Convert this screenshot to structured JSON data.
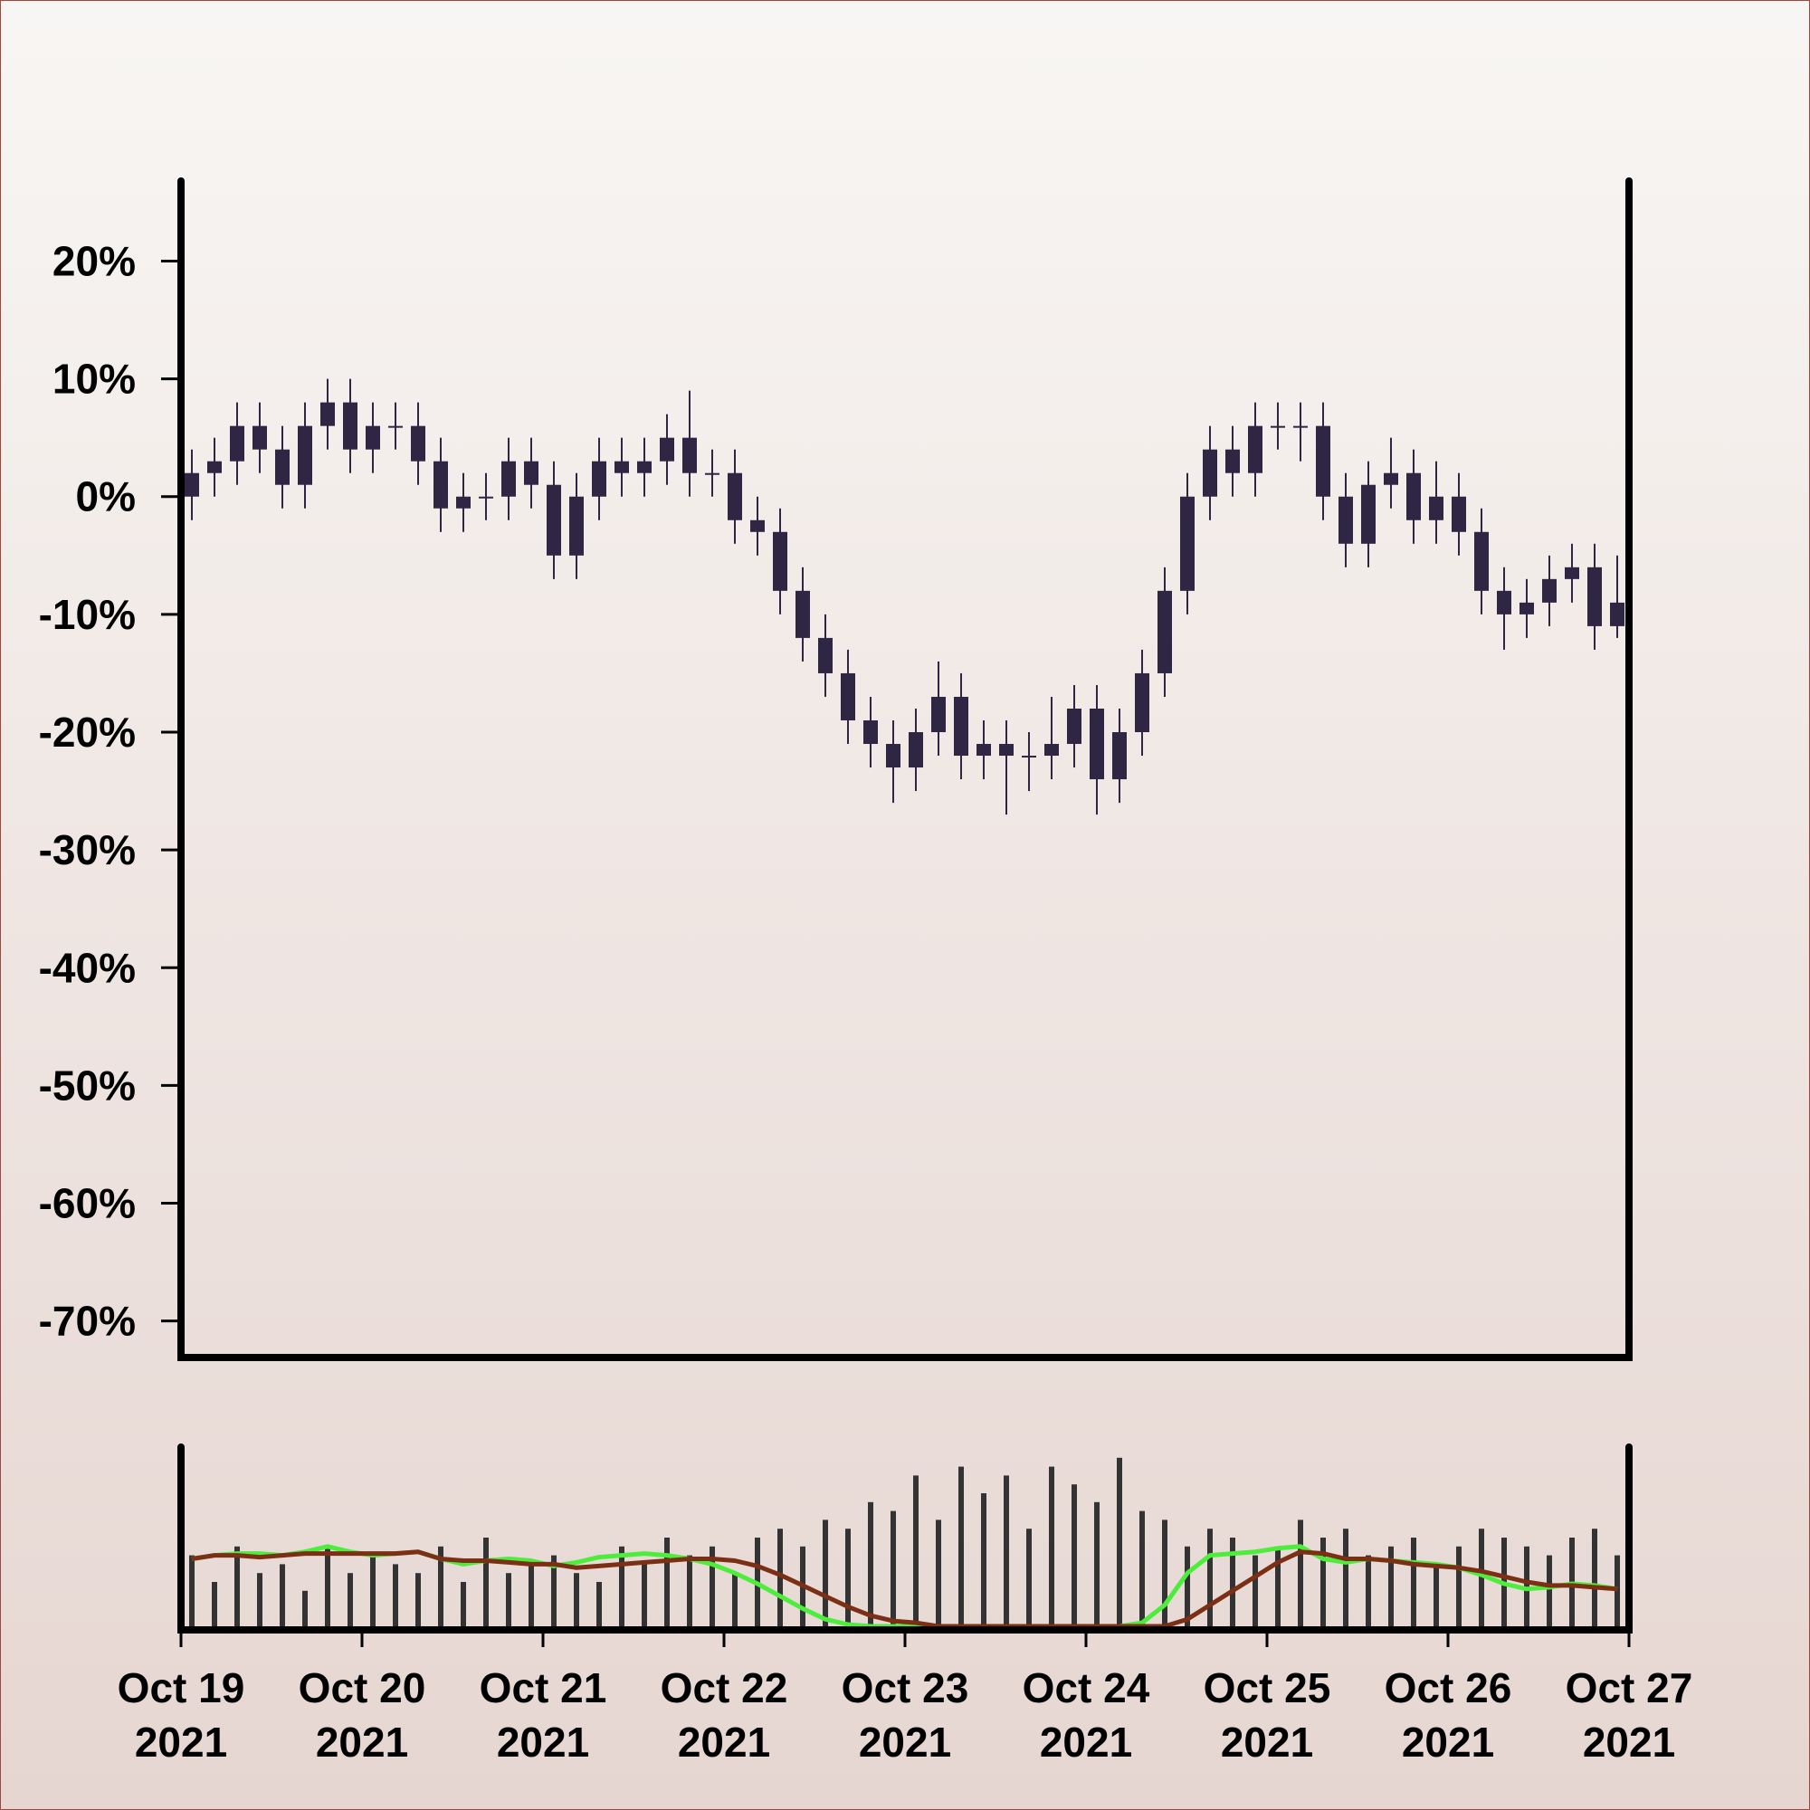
{
  "chart_data": [
    {
      "type": "candlestick",
      "x": [
        "2021-10-19T00:00",
        "2021-10-19T03:00",
        "2021-10-19T06:00",
        "2021-10-19T09:00",
        "2021-10-19T12:00",
        "2021-10-19T15:00",
        "2021-10-19T18:00",
        "2021-10-19T21:00",
        "2021-10-20T00:00",
        "2021-10-20T03:00",
        "2021-10-20T06:00",
        "2021-10-20T09:00",
        "2021-10-20T12:00",
        "2021-10-20T15:00",
        "2021-10-20T18:00",
        "2021-10-20T21:00",
        "2021-10-21T00:00",
        "2021-10-21T03:00",
        "2021-10-21T06:00",
        "2021-10-21T09:00",
        "2021-10-21T12:00",
        "2021-10-21T15:00",
        "2021-10-21T18:00",
        "2021-10-21T21:00",
        "2021-10-22T00:00",
        "2021-10-22T03:00",
        "2021-10-22T06:00",
        "2021-10-22T09:00",
        "2021-10-22T12:00",
        "2021-10-22T15:00",
        "2021-10-22T18:00",
        "2021-10-22T21:00",
        "2021-10-23T00:00",
        "2021-10-23T03:00",
        "2021-10-23T06:00",
        "2021-10-23T09:00",
        "2021-10-23T12:00",
        "2021-10-23T15:00",
        "2021-10-23T18:00",
        "2021-10-23T21:00",
        "2021-10-24T00:00",
        "2021-10-24T03:00",
        "2021-10-24T06:00",
        "2021-10-24T09:00",
        "2021-10-24T12:00",
        "2021-10-24T15:00",
        "2021-10-24T18:00",
        "2021-10-24T21:00",
        "2021-10-25T00:00",
        "2021-10-25T03:00",
        "2021-10-25T06:00",
        "2021-10-25T09:00",
        "2021-10-25T12:00",
        "2021-10-25T15:00",
        "2021-10-25T18:00",
        "2021-10-25T21:00",
        "2021-10-26T00:00",
        "2021-10-26T03:00",
        "2021-10-26T06:00",
        "2021-10-26T09:00",
        "2021-10-26T12:00",
        "2021-10-26T15:00",
        "2021-10-26T18:00",
        "2021-10-26T21:00"
      ],
      "open": [
        0,
        2,
        3,
        6,
        4,
        1,
        6,
        8,
        4,
        6,
        6,
        3,
        -1,
        0,
        0,
        3,
        1,
        -5,
        0,
        3,
        2,
        3,
        5,
        2,
        2,
        -2,
        -3,
        -8,
        -12,
        -15,
        -19,
        -21,
        -23,
        -20,
        -17,
        -22,
        -21,
        -22,
        -22,
        -21,
        -18,
        -24,
        -20,
        -15,
        -8,
        0,
        4,
        2,
        6,
        6,
        6,
        0,
        -4,
        1,
        2,
        -2,
        0,
        -3,
        -8,
        -10,
        -9,
        -7,
        -6,
        -11
      ],
      "high": [
        4,
        5,
        8,
        8,
        6,
        8,
        10,
        10,
        8,
        8,
        8,
        5,
        2,
        2,
        5,
        5,
        3,
        2,
        5,
        5,
        5,
        7,
        9,
        4,
        4,
        0,
        -1,
        -6,
        -10,
        -13,
        -17,
        -19,
        -18,
        -14,
        -15,
        -19,
        -19,
        -20,
        -17,
        -16,
        -16,
        -18,
        -13,
        -6,
        2,
        6,
        6,
        8,
        8,
        8,
        8,
        2,
        3,
        5,
        4,
        3,
        2,
        -1,
        -6,
        -7,
        -5,
        -4,
        -4,
        -5
      ],
      "low": [
        -2,
        0,
        1,
        2,
        -1,
        -1,
        4,
        2,
        2,
        4,
        1,
        -3,
        -3,
        -2,
        -2,
        -1,
        -7,
        -7,
        -2,
        0,
        0,
        1,
        0,
        0,
        -4,
        -5,
        -10,
        -14,
        -17,
        -21,
        -23,
        -26,
        -25,
        -22,
        -24,
        -24,
        -27,
        -25,
        -24,
        -23,
        -27,
        -26,
        -22,
        -17,
        -10,
        -2,
        0,
        0,
        4,
        3,
        -2,
        -6,
        -6,
        -1,
        -4,
        -4,
        -5,
        -10,
        -13,
        -12,
        -11,
        -9,
        -13,
        -12
      ],
      "close": [
        2,
        3,
        6,
        4,
        1,
        6,
        8,
        4,
        6,
        6,
        3,
        -1,
        0,
        0,
        3,
        1,
        -5,
        0,
        3,
        2,
        3,
        5,
        2,
        2,
        -2,
        -3,
        -8,
        -12,
        -15,
        -19,
        -21,
        -23,
        -20,
        -17,
        -22,
        -21,
        -22,
        -22,
        -21,
        -18,
        -24,
        -20,
        -15,
        -8,
        0,
        4,
        2,
        6,
        6,
        6,
        0,
        -4,
        1,
        2,
        -2,
        0,
        -3,
        -8,
        -10,
        -9,
        -7,
        -6,
        -11,
        -9
      ],
      "color": "#2e2642",
      "xlim": [
        "2021-10-19",
        "2021-10-27"
      ],
      "ylim": [
        -73.1,
        26.8
      ],
      "yticks": [
        {
          "value": 20,
          "label": "20%"
        },
        {
          "value": 10,
          "label": "10%"
        },
        {
          "value": 0,
          "label": "0%"
        },
        {
          "value": -10,
          "label": "-10%"
        },
        {
          "value": -20,
          "label": "-20%"
        },
        {
          "value": -30,
          "label": "-30%"
        },
        {
          "value": -40,
          "label": "-40%"
        },
        {
          "value": -50,
          "label": "-50%"
        },
        {
          "value": -60,
          "label": "-60%"
        },
        {
          "value": -70,
          "label": "-70%"
        }
      ]
    },
    {
      "type": "volume",
      "values": [
        40,
        25,
        45,
        30,
        35,
        20,
        45,
        30,
        40,
        35,
        30,
        45,
        25,
        50,
        30,
        35,
        40,
        30,
        25,
        45,
        35,
        50,
        40,
        45,
        30,
        50,
        55,
        45,
        60,
        55,
        70,
        65,
        85,
        60,
        90,
        75,
        85,
        55,
        90,
        80,
        70,
        95,
        65,
        60,
        45,
        55,
        50,
        40,
        45,
        60,
        50,
        55,
        40,
        45,
        50,
        35,
        45,
        55,
        50,
        45,
        40,
        50,
        55,
        40
      ],
      "color": "#333333",
      "series": [
        {
          "color": "#4ded3c",
          "values": [
            38,
            40,
            41,
            41,
            40,
            42,
            45,
            42,
            40,
            41,
            42,
            38,
            35,
            37,
            38,
            37,
            34,
            36,
            39,
            40,
            41,
            40,
            38,
            35,
            30,
            24,
            17,
            10,
            4,
            1,
            0,
            0,
            0,
            0,
            0,
            0,
            0,
            0,
            0,
            0,
            0,
            0,
            2,
            12,
            30,
            40,
            41,
            42,
            44,
            45,
            38,
            36,
            38,
            37,
            36,
            35,
            33,
            29,
            24,
            21,
            22,
            24,
            23,
            21
          ]
        },
        {
          "color": "#7b2f14",
          "values": [
            38,
            40,
            40,
            39,
            40,
            41,
            41,
            41,
            41,
            41,
            42,
            38,
            37,
            37,
            36,
            35,
            35,
            33,
            34,
            35,
            36,
            37,
            38,
            38,
            37,
            34,
            29,
            23,
            17,
            11,
            6,
            3,
            2,
            0,
            0,
            0,
            0,
            0,
            0,
            0,
            0,
            0,
            0,
            0,
            4,
            12,
            20,
            28,
            36,
            42,
            41,
            38,
            38,
            37,
            35,
            34,
            33,
            31,
            28,
            25,
            23,
            23,
            22,
            21
          ]
        }
      ],
      "ylim": [
        0,
        100
      ],
      "xlim": [
        "2021-10-19",
        "2021-10-27"
      ],
      "xticks": [
        {
          "value": "2021-10-19",
          "label": [
            "Oct 19",
            "2021"
          ]
        },
        {
          "value": "2021-10-20",
          "label": [
            "Oct 20",
            "2021"
          ]
        },
        {
          "value": "2021-10-21",
          "label": [
            "Oct 21",
            "2021"
          ]
        },
        {
          "value": "2021-10-22",
          "label": [
            "Oct 22",
            "2021"
          ]
        },
        {
          "value": "2021-10-23",
          "label": [
            "Oct 23",
            "2021"
          ]
        },
        {
          "value": "2021-10-24",
          "label": [
            "Oct 24",
            "2021"
          ]
        },
        {
          "value": "2021-10-25",
          "label": [
            "Oct 25",
            "2021"
          ]
        },
        {
          "value": "2021-10-26",
          "label": [
            "Oct 26",
            "2021"
          ]
        },
        {
          "value": "2021-10-27",
          "label": [
            "Oct 27",
            "2021"
          ]
        }
      ]
    }
  ]
}
